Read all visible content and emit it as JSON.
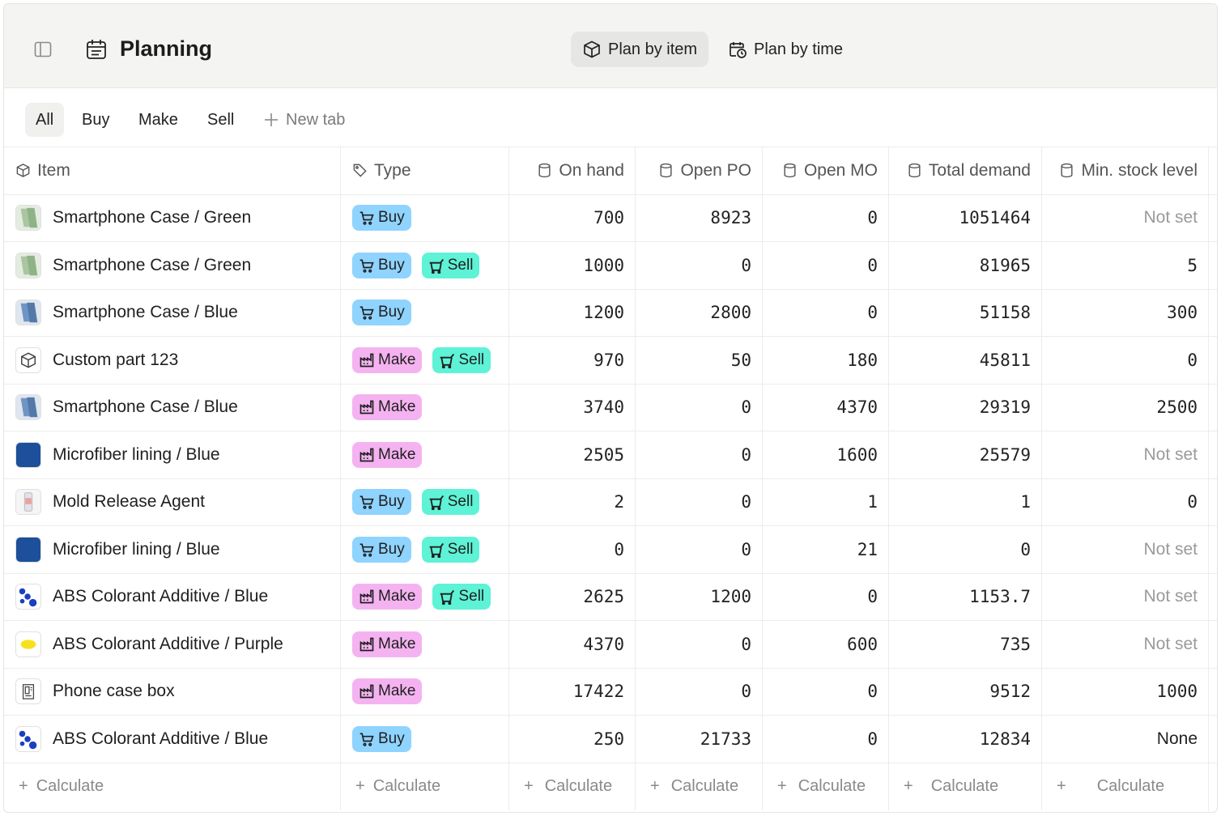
{
  "header": {
    "title": "Planning",
    "views": [
      {
        "label": "Plan by item",
        "active": true
      },
      {
        "label": "Plan by time",
        "active": false
      }
    ]
  },
  "tabs": [
    "All",
    "Buy",
    "Make",
    "Sell"
  ],
  "new_tab_label": "New tab",
  "columns": {
    "item": "Item",
    "type": "Type",
    "on_hand": "On hand",
    "open_po": "Open PO",
    "open_mo": "Open MO",
    "total_demand": "Total demand",
    "min_stock": "Min. stock level"
  },
  "rows": [
    {
      "name": "Smartphone Case / Green",
      "thumb": "case-green",
      "types": [
        "Buy"
      ],
      "on_hand": "700",
      "open_po": "8923",
      "open_mo": "0",
      "total_demand": "1051464",
      "min_stock": "Not set"
    },
    {
      "name": "Smartphone Case / Green",
      "thumb": "case-green",
      "types": [
        "Buy",
        "Sell"
      ],
      "on_hand": "1000",
      "open_po": "0",
      "open_mo": "0",
      "total_demand": "81965",
      "min_stock": "5"
    },
    {
      "name": "Smartphone Case / Blue",
      "thumb": "case-blue",
      "types": [
        "Buy"
      ],
      "on_hand": "1200",
      "open_po": "2800",
      "open_mo": "0",
      "total_demand": "51158",
      "min_stock": "300"
    },
    {
      "name": "Custom part 123",
      "thumb": "cube",
      "types": [
        "Make",
        "Sell"
      ],
      "on_hand": "970",
      "open_po": "50",
      "open_mo": "180",
      "total_demand": "45811",
      "min_stock": "0"
    },
    {
      "name": "Smartphone Case / Blue",
      "thumb": "case-blue",
      "types": [
        "Make"
      ],
      "on_hand": "3740",
      "open_po": "0",
      "open_mo": "4370",
      "total_demand": "29319",
      "min_stock": "2500"
    },
    {
      "name": "Microfiber lining / Blue",
      "thumb": "fabric-blue",
      "types": [
        "Make"
      ],
      "on_hand": "2505",
      "open_po": "0",
      "open_mo": "1600",
      "total_demand": "25579",
      "min_stock": "Not set"
    },
    {
      "name": "Mold Release Agent",
      "thumb": "bottle",
      "types": [
        "Buy",
        "Sell"
      ],
      "on_hand": "2",
      "open_po": "0",
      "open_mo": "1",
      "total_demand": "1",
      "min_stock": "0"
    },
    {
      "name": "Microfiber lining / Blue",
      "thumb": "fabric-blue",
      "types": [
        "Buy",
        "Sell"
      ],
      "on_hand": "0",
      "open_po": "0",
      "open_mo": "21",
      "total_demand": "0",
      "min_stock": "Not set"
    },
    {
      "name": "ABS Colorant Additive / Blue",
      "thumb": "pellets-blue",
      "types": [
        "Make",
        "Sell"
      ],
      "on_hand": "2625",
      "open_po": "1200",
      "open_mo": "0",
      "total_demand": "1153.7",
      "min_stock": "Not set"
    },
    {
      "name": "ABS Colorant Additive / Purple",
      "thumb": "pellets-yellow",
      "types": [
        "Make"
      ],
      "on_hand": "4370",
      "open_po": "0",
      "open_mo": "600",
      "total_demand": "735",
      "min_stock": "Not set"
    },
    {
      "name": "Phone case box",
      "thumb": "box",
      "types": [
        "Make"
      ],
      "on_hand": "17422",
      "open_po": "0",
      "open_mo": "0",
      "total_demand": "9512",
      "min_stock": "1000"
    },
    {
      "name": "ABS Colorant Additive / Blue",
      "thumb": "pellets-blue",
      "types": [
        "Buy"
      ],
      "on_hand": "250",
      "open_po": "21733",
      "open_mo": "0",
      "total_demand": "12834",
      "min_stock": "None"
    }
  ],
  "footer_label": "Calculate",
  "colors": {
    "buy": "#8fd3ff",
    "make": "#f4b3f0",
    "sell": "#5ef2d6",
    "notset": "#9a9a9a"
  }
}
